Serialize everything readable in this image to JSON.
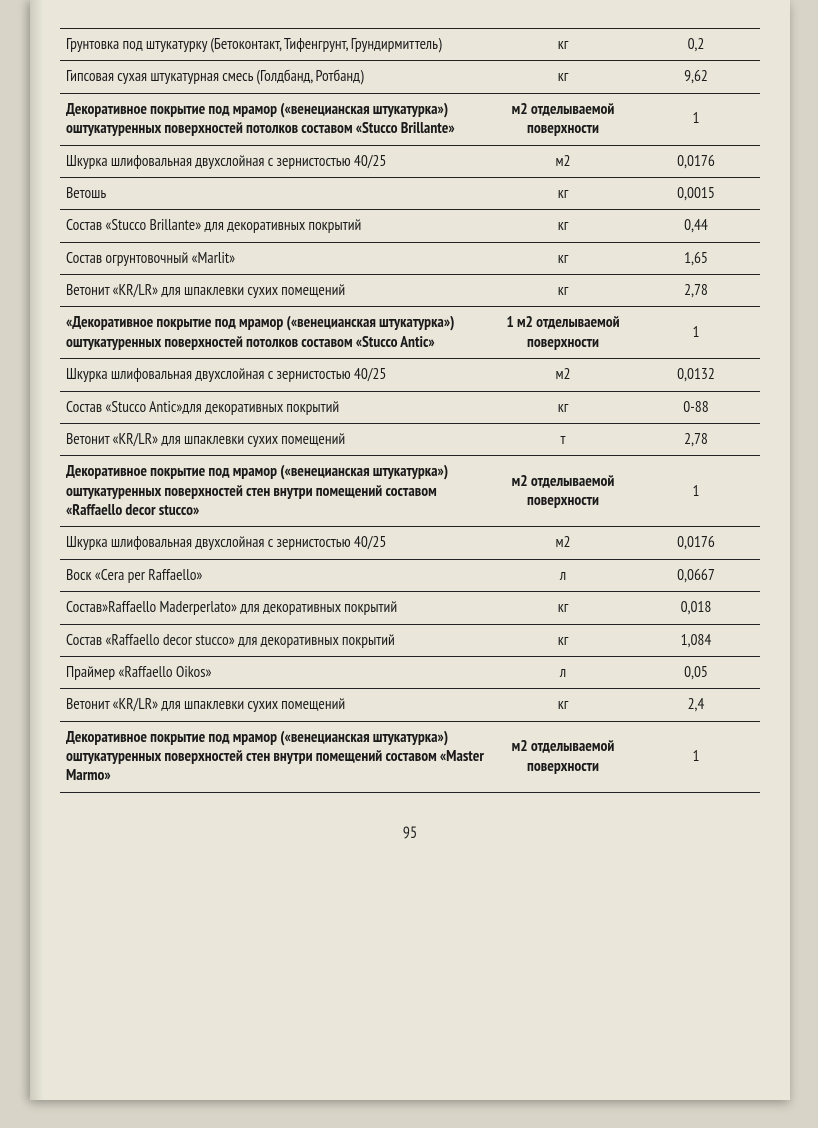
{
  "page_number": "95",
  "table": {
    "col_widths": [
      "62%",
      "20%",
      "18%"
    ],
    "rows": [
      {
        "desc": "Грунтовка под штукатурку (Бетоконтакт, Тифенгрунт, Грундирмиттель)",
        "unit": "кг",
        "val": "0,2",
        "bold": false
      },
      {
        "desc": "Гипсовая сухая штукатурная смесь (Голдбанд, Ротбанд)",
        "unit": "кг",
        "val": "9,62",
        "bold": false
      },
      {
        "desc": "Декоративное покрытие под мрамор («венецианская штукатурка») оштукатуренных поверхностей потолков составом «Stucco Brillante»",
        "unit": "м2 отделываемой поверхности",
        "val": "1",
        "bold": true
      },
      {
        "desc": "Шкурка шлифовальная двухслойная с зернистостью 40/25",
        "unit": "м2",
        "val": "0,0176",
        "bold": false
      },
      {
        "desc": "Ветошь",
        "unit": "кг",
        "val": "0,0015",
        "bold": false
      },
      {
        "desc": "Состав «Stucco Brillante» для декоративных покрытий",
        "unit": "кг",
        "val": "0,44",
        "bold": false
      },
      {
        "desc": "Состав огрунтовочный «Marlit»",
        "unit": "кг",
        "val": "1,65",
        "bold": false
      },
      {
        "desc": "Ветонит «KR/LR» для шпаклевки сухих помещений",
        "unit": "кг",
        "val": "2,78",
        "bold": false
      },
      {
        "desc": "«Декоративное покрытие под мрамор («венецианская штукатурка») оштукатуренных поверхностей потолков составом «Stucco Antic»",
        "unit": "1 м2 отделываемой поверхности",
        "val": "1",
        "bold": true
      },
      {
        "desc": "Шкурка шлифовальная двухслойная с зернистостью 40/25",
        "unit": "м2",
        "val": "0,0132",
        "bold": false
      },
      {
        "desc": "Состав «Stucco Antic»для декоративных покрытий",
        "unit": "кг",
        "val": "0-88",
        "bold": false
      },
      {
        "desc": "Ветонит «KR/LR» для шпаклевки сухих помещений",
        "unit": "т",
        "val": "2,78",
        "bold": false
      },
      {
        "desc": "Декоративное покрытие под мрамор («венецианская штукатурка») оштукатуренных поверхностей стен внутри помещений составом «Raffaello decor stucco»",
        "unit": "м2 отделываемой поверхности",
        "val": "1",
        "bold": true
      },
      {
        "desc": "Шкурка шлифовальная двухслойная с зернистостью 40/25",
        "unit": "м2",
        "val": "0,0176",
        "bold": false
      },
      {
        "desc": "Воск «Cera per Raffaello»",
        "unit": "л",
        "val": "0,0667",
        "bold": false
      },
      {
        "desc": "Состав»Raffaello Maderperlato» для декоративных покрытий",
        "unit": "кг",
        "val": "0,018",
        "bold": false
      },
      {
        "desc": "Состав «Raffaello decor stucco» для декоративных покрытий",
        "unit": "кг",
        "val": "1,084",
        "bold": false
      },
      {
        "desc": "Праймер «Raffaello Oikos»",
        "unit": "л",
        "val": "0,05",
        "bold": false
      },
      {
        "desc": "Ветонит «KR/LR» для шпаклевки сухих помещений",
        "unit": "кг",
        "val": "2,4",
        "bold": false
      },
      {
        "desc": "Декоративное покрытие под мрамор («венецианская штукатурка») оштукатуренных поверхностей стен внутри помещений составом «Master Marmo»",
        "unit": "м2 отделываемой поверхности",
        "val": "1",
        "bold": true
      }
    ]
  }
}
